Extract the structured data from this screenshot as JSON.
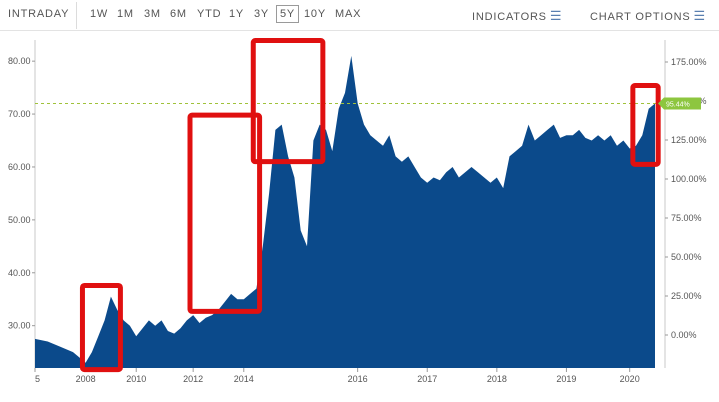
{
  "toolbar": {
    "intraday": "INTRADAY",
    "ranges": [
      "1W",
      "1M",
      "3M",
      "6M",
      "YTD",
      "1Y",
      "3Y",
      "5Y",
      "10Y",
      "MAX"
    ],
    "active_range": "5Y",
    "indicators": "INDICATORS",
    "chart_options": "CHART OPTIONS"
  },
  "chart_data": {
    "type": "area",
    "title": "",
    "xlabel": "",
    "ylabel": "",
    "colors": {
      "fill": "#0b4a8b",
      "reference": "#a0c23a",
      "badge": "#8dc63f",
      "highlight": "#e01010"
    },
    "left_axis": {
      "ticks": [
        "30.00",
        "40.00",
        "50.00",
        "60.00",
        "70.00",
        "80.00"
      ],
      "values": [
        30,
        40,
        50,
        60,
        70,
        80
      ],
      "range": [
        22,
        84
      ]
    },
    "right_axis": {
      "ticks": [
        "0.00%",
        "25.00%",
        "50.00%",
        "75.00%",
        "100.00%",
        "125.00%",
        "150.00%",
        "175.00%"
      ]
    },
    "x_tick_labels": [
      {
        "label": "5",
        "x": 0
      },
      {
        "label": "2008",
        "x": 8
      },
      {
        "label": "2010",
        "x": 16
      },
      {
        "label": "2012",
        "x": 25
      },
      {
        "label": "2014",
        "x": 33
      },
      {
        "label": "2016",
        "x": 51
      },
      {
        "label": "2017",
        "x": 62
      },
      {
        "label": "2018",
        "x": 73
      },
      {
        "label": "2019",
        "x": 84
      },
      {
        "label": "2020",
        "x": 94
      }
    ],
    "x_range": [
      0,
      98
    ],
    "series": [
      {
        "x": [
          0,
          2,
          4,
          6,
          7,
          8,
          9,
          10,
          11,
          12,
          13,
          14,
          15,
          16,
          17,
          18,
          19,
          20,
          21,
          22,
          23,
          24,
          25,
          26,
          27,
          28,
          29,
          30,
          31,
          32,
          33,
          34,
          35,
          36,
          37,
          38,
          39,
          40,
          41,
          42,
          43,
          44,
          45,
          46,
          47,
          48,
          49,
          50,
          51,
          52,
          53,
          54,
          55,
          56,
          57,
          58,
          59,
          60,
          61,
          62,
          63,
          64,
          65,
          66,
          67,
          68,
          69,
          70,
          71,
          72,
          73,
          74,
          75,
          76,
          77,
          78,
          79,
          80,
          81,
          82,
          83,
          84,
          85,
          86,
          87,
          88,
          89,
          90,
          91,
          92,
          93,
          94,
          95,
          96,
          97,
          98
        ],
        "values": [
          27.5,
          27,
          26,
          25,
          24,
          23,
          25,
          28,
          31,
          35.5,
          33,
          31,
          30,
          28,
          29.5,
          31,
          30,
          31,
          29,
          28.5,
          29.5,
          31,
          32,
          30.5,
          31.5,
          32,
          33,
          34.5,
          36,
          35,
          35,
          36,
          37,
          45,
          55,
          67,
          68,
          62,
          58,
          48,
          45,
          65,
          68,
          67,
          63,
          71,
          74,
          81,
          72,
          68,
          66,
          65,
          64,
          66,
          62,
          61,
          62,
          60,
          58,
          57,
          58,
          57.5,
          59,
          60,
          58,
          59,
          60,
          59,
          58,
          57,
          58,
          56,
          62,
          63,
          64,
          68,
          65,
          66,
          67,
          68,
          65.5,
          66,
          66,
          67,
          65.5,
          65,
          66,
          65,
          66,
          64,
          65,
          63.5,
          64,
          66,
          71,
          72
        ]
      }
    ],
    "reference_line": {
      "value": 72
    },
    "last_value_label": "95.44%",
    "highlight_boxes": [
      {
        "x0": 7.5,
        "x1": 13.5,
        "y0": 21.7,
        "y1": 37.6
      },
      {
        "x0": 24.5,
        "x1": 35.5,
        "y0": 32.7,
        "y1": 69.8
      },
      {
        "x0": 34.5,
        "x1": 45.5,
        "y0": 61,
        "y1": 83.9
      },
      {
        "x0": 94.5,
        "x1": 98.5,
        "y0": 60.5,
        "y1": 75.4
      }
    ]
  }
}
